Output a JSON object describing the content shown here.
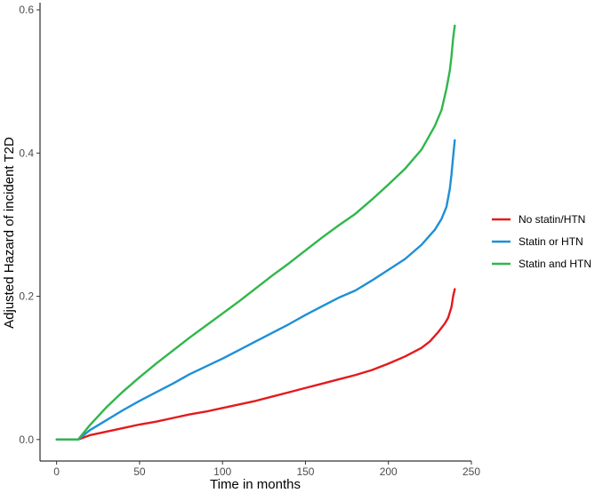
{
  "chart_data": {
    "type": "line",
    "xlabel": "Time in months",
    "ylabel": "Adjusted Hazard of incident T2D",
    "xlim": [
      -10,
      250
    ],
    "ylim": [
      -0.03,
      0.61
    ],
    "x_ticks": [
      0,
      50,
      100,
      150,
      200,
      250
    ],
    "x_tick_labels": [
      "0",
      "50",
      "100",
      "150",
      "200",
      "250"
    ],
    "y_ticks": [
      0.0,
      0.2,
      0.4,
      0.6
    ],
    "y_tick_labels": [
      "0.0",
      "0.2",
      "0.4",
      "0.6"
    ],
    "grid": false,
    "legend_position": "right",
    "series": [
      {
        "name": "No statin/HTN",
        "color": "#e41a1c",
        "points": [
          [
            0,
            0
          ],
          [
            13,
            0
          ],
          [
            20,
            0.006
          ],
          [
            30,
            0.011
          ],
          [
            40,
            0.016
          ],
          [
            50,
            0.021
          ],
          [
            60,
            0.025
          ],
          [
            70,
            0.03
          ],
          [
            80,
            0.035
          ],
          [
            90,
            0.039
          ],
          [
            100,
            0.044
          ],
          [
            110,
            0.049
          ],
          [
            120,
            0.054
          ],
          [
            130,
            0.06
          ],
          [
            140,
            0.066
          ],
          [
            150,
            0.072
          ],
          [
            160,
            0.078
          ],
          [
            170,
            0.084
          ],
          [
            180,
            0.09
          ],
          [
            190,
            0.097
          ],
          [
            200,
            0.106
          ],
          [
            210,
            0.116
          ],
          [
            220,
            0.128
          ],
          [
            225,
            0.137
          ],
          [
            230,
            0.15
          ],
          [
            234,
            0.162
          ],
          [
            236,
            0.17
          ],
          [
            238,
            0.185
          ],
          [
            239,
            0.2
          ],
          [
            240,
            0.21
          ]
        ]
      },
      {
        "name": "Statin or HTN",
        "color": "#1f8fd6",
        "points": [
          [
            0,
            0
          ],
          [
            13,
            0
          ],
          [
            20,
            0.013
          ],
          [
            30,
            0.027
          ],
          [
            40,
            0.041
          ],
          [
            50,
            0.054
          ],
          [
            60,
            0.066
          ],
          [
            70,
            0.078
          ],
          [
            80,
            0.091
          ],
          [
            90,
            0.102
          ],
          [
            100,
            0.113
          ],
          [
            110,
            0.125
          ],
          [
            120,
            0.137
          ],
          [
            130,
            0.149
          ],
          [
            140,
            0.161
          ],
          [
            150,
            0.174
          ],
          [
            160,
            0.186
          ],
          [
            170,
            0.198
          ],
          [
            180,
            0.208
          ],
          [
            190,
            0.222
          ],
          [
            200,
            0.237
          ],
          [
            210,
            0.252
          ],
          [
            220,
            0.272
          ],
          [
            228,
            0.293
          ],
          [
            232,
            0.308
          ],
          [
            235,
            0.325
          ],
          [
            237,
            0.35
          ],
          [
            238,
            0.37
          ],
          [
            239,
            0.395
          ],
          [
            240,
            0.418
          ]
        ]
      },
      {
        "name": "Statin and HTN",
        "color": "#2fb74a",
        "points": [
          [
            0,
            0
          ],
          [
            13,
            0
          ],
          [
            20,
            0.02
          ],
          [
            30,
            0.045
          ],
          [
            40,
            0.067
          ],
          [
            50,
            0.087
          ],
          [
            60,
            0.106
          ],
          [
            70,
            0.124
          ],
          [
            80,
            0.142
          ],
          [
            90,
            0.159
          ],
          [
            100,
            0.176
          ],
          [
            110,
            0.193
          ],
          [
            120,
            0.211
          ],
          [
            130,
            0.229
          ],
          [
            140,
            0.246
          ],
          [
            150,
            0.264
          ],
          [
            160,
            0.282
          ],
          [
            170,
            0.299
          ],
          [
            180,
            0.315
          ],
          [
            190,
            0.335
          ],
          [
            200,
            0.356
          ],
          [
            210,
            0.378
          ],
          [
            220,
            0.405
          ],
          [
            228,
            0.438
          ],
          [
            232,
            0.46
          ],
          [
            235,
            0.49
          ],
          [
            237,
            0.515
          ],
          [
            238,
            0.535
          ],
          [
            239,
            0.56
          ],
          [
            240,
            0.578
          ]
        ]
      }
    ]
  }
}
